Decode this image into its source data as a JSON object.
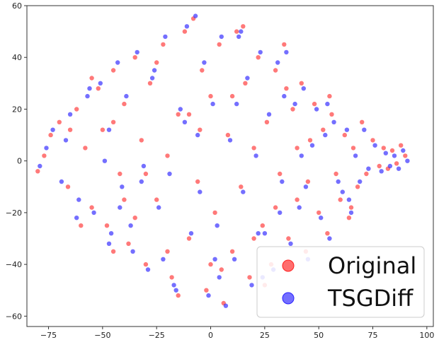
{
  "chart_data": {
    "type": "scatter",
    "title": "",
    "xlabel": "",
    "ylabel": "",
    "xlim": [
      -85,
      103
    ],
    "ylim": [
      -64,
      60
    ],
    "xticks": [
      -75,
      -50,
      -25,
      0,
      25,
      50,
      75,
      100
    ],
    "yticks": [
      -60,
      -40,
      -20,
      0,
      20,
      40,
      60
    ],
    "xtick_labels": [
      "−75",
      "−50",
      "−25",
      "0",
      "25",
      "50",
      "75",
      "100"
    ],
    "ytick_labels": [
      "−60",
      "−40",
      "−20",
      "0",
      "20",
      "40",
      "60"
    ],
    "grid": false,
    "legend": {
      "placement": "bottom-right",
      "entries": [
        {
          "label": "Original",
          "color": "#ff2020"
        },
        {
          "label": "TSGDiff",
          "color": "#2a22ff"
        }
      ]
    },
    "series": [
      {
        "name": "Original",
        "color": "#ff2020",
        "alpha": 0.6,
        "points": [
          [
            -80,
            -4
          ],
          [
            -77,
            2
          ],
          [
            -74,
            10
          ],
          [
            -70,
            15
          ],
          [
            -66,
            -10
          ],
          [
            -62,
            20
          ],
          [
            -58,
            5
          ],
          [
            -55,
            -18
          ],
          [
            -52,
            28
          ],
          [
            -50,
            12
          ],
          [
            -48,
            -25
          ],
          [
            -45,
            35
          ],
          [
            -42,
            -5
          ],
          [
            -40,
            22
          ],
          [
            -38,
            -32
          ],
          [
            -35,
            40
          ],
          [
            -32,
            8
          ],
          [
            -30,
            -40
          ],
          [
            -28,
            30
          ],
          [
            -25,
            -15
          ],
          [
            -22,
            45
          ],
          [
            -20,
            2
          ],
          [
            -18,
            -45
          ],
          [
            -15,
            18
          ],
          [
            -12,
            50
          ],
          [
            -10,
            -30
          ],
          [
            -8,
            55
          ],
          [
            -6,
            -8
          ],
          [
            -4,
            35
          ],
          [
            -2,
            -50
          ],
          [
            0,
            25
          ],
          [
            2,
            -20
          ],
          [
            4,
            45
          ],
          [
            6,
            -55
          ],
          [
            8,
            10
          ],
          [
            10,
            -35
          ],
          [
            12,
            50
          ],
          [
            14,
            -10
          ],
          [
            16,
            30
          ],
          [
            18,
            -45
          ],
          [
            20,
            5
          ],
          [
            22,
            40
          ],
          [
            24,
            -25
          ],
          [
            26,
            15
          ],
          [
            28,
            -40
          ],
          [
            30,
            35
          ],
          [
            32,
            -5
          ],
          [
            34,
            45
          ],
          [
            36,
            -30
          ],
          [
            38,
            20
          ],
          [
            40,
            -15
          ],
          [
            42,
            30
          ],
          [
            44,
            -35
          ],
          [
            46,
            8
          ],
          [
            48,
            22
          ],
          [
            50,
            -20
          ],
          [
            52,
            12
          ],
          [
            54,
            -28
          ],
          [
            56,
            18
          ],
          [
            58,
            -5
          ],
          [
            60,
            -15
          ],
          [
            62,
            10
          ],
          [
            64,
            -22
          ],
          [
            66,
            5
          ],
          [
            68,
            -10
          ],
          [
            70,
            15
          ],
          [
            72,
            -5
          ],
          [
            75,
            8
          ],
          [
            78,
            -2
          ],
          [
            80,
            5
          ],
          [
            82,
            -3
          ],
          [
            84,
            4
          ],
          [
            86,
            -1
          ],
          [
            88,
            6
          ],
          [
            90,
            2
          ],
          [
            -60,
            -25
          ],
          [
            -55,
            32
          ],
          [
            -45,
            -35
          ],
          [
            -35,
            -22
          ],
          [
            -25,
            38
          ],
          [
            -15,
            -52
          ],
          [
            -5,
            12
          ],
          [
            5,
            -42
          ],
          [
            15,
            52
          ],
          [
            25,
            -48
          ],
          [
            35,
            28
          ],
          [
            45,
            -8
          ],
          [
            55,
            25
          ],
          [
            65,
            -18
          ],
          [
            -65,
            12
          ],
          [
            -45,
            15
          ],
          [
            -30,
            -5
          ],
          [
            -10,
            18
          ],
          [
            10,
            25
          ],
          [
            30,
            -18
          ],
          [
            -20,
            -35
          ],
          [
            0,
            -40
          ],
          [
            20,
            -30
          ],
          [
            -40,
            -15
          ],
          [
            40,
            5
          ]
        ]
      },
      {
        "name": "TSGDiff",
        "color": "#2a22ff",
        "alpha": 0.65,
        "points": [
          [
            -79,
            -2
          ],
          [
            -76,
            5
          ],
          [
            -73,
            12
          ],
          [
            -69,
            -8
          ],
          [
            -65,
            18
          ],
          [
            -61,
            -15
          ],
          [
            -57,
            25
          ],
          [
            -54,
            -20
          ],
          [
            -51,
            30
          ],
          [
            -49,
            0
          ],
          [
            -46,
            -28
          ],
          [
            -43,
            38
          ],
          [
            -41,
            -10
          ],
          [
            -39,
            25
          ],
          [
            -36,
            -35
          ],
          [
            -34,
            42
          ],
          [
            -31,
            -2
          ],
          [
            -29,
            -42
          ],
          [
            -27,
            32
          ],
          [
            -24,
            -18
          ],
          [
            -21,
            48
          ],
          [
            -19,
            -5
          ],
          [
            -17,
            -48
          ],
          [
            -14,
            20
          ],
          [
            -11,
            52
          ],
          [
            -9,
            -28
          ],
          [
            -7,
            56
          ],
          [
            -5,
            -12
          ],
          [
            -3,
            38
          ],
          [
            -1,
            -52
          ],
          [
            1,
            22
          ],
          [
            3,
            -25
          ],
          [
            5,
            48
          ],
          [
            7,
            -56
          ],
          [
            9,
            8
          ],
          [
            11,
            -38
          ],
          [
            13,
            48
          ],
          [
            15,
            -12
          ],
          [
            17,
            32
          ],
          [
            19,
            -48
          ],
          [
            21,
            2
          ],
          [
            23,
            42
          ],
          [
            25,
            -28
          ],
          [
            27,
            18
          ],
          [
            29,
            -42
          ],
          [
            31,
            38
          ],
          [
            33,
            -8
          ],
          [
            35,
            42
          ],
          [
            37,
            -32
          ],
          [
            39,
            22
          ],
          [
            41,
            -18
          ],
          [
            43,
            28
          ],
          [
            45,
            -38
          ],
          [
            47,
            6
          ],
          [
            49,
            20
          ],
          [
            51,
            -22
          ],
          [
            53,
            10
          ],
          [
            55,
            -30
          ],
          [
            57,
            15
          ],
          [
            59,
            -8
          ],
          [
            61,
            -12
          ],
          [
            63,
            12
          ],
          [
            65,
            -20
          ],
          [
            67,
            2
          ],
          [
            69,
            -8
          ],
          [
            71,
            12
          ],
          [
            73,
            -3
          ],
          [
            76,
            6
          ],
          [
            79,
            -4
          ],
          [
            81,
            3
          ],
          [
            83,
            -2
          ],
          [
            85,
            2
          ],
          [
            87,
            -3
          ],
          [
            89,
            4
          ],
          [
            91,
            0
          ],
          [
            -62,
            -22
          ],
          [
            -56,
            28
          ],
          [
            -47,
            -32
          ],
          [
            -37,
            -25
          ],
          [
            -26,
            35
          ],
          [
            -16,
            -50
          ],
          [
            -6,
            10
          ],
          [
            4,
            -45
          ],
          [
            14,
            50
          ],
          [
            24,
            -45
          ],
          [
            34,
            25
          ],
          [
            44,
            -10
          ],
          [
            54,
            22
          ],
          [
            64,
            -15
          ],
          [
            -67,
            8
          ],
          [
            -47,
            12
          ],
          [
            -32,
            -8
          ],
          [
            -12,
            15
          ],
          [
            12,
            22
          ],
          [
            32,
            -20
          ],
          [
            -22,
            -38
          ],
          [
            2,
            -38
          ],
          [
            22,
            -28
          ],
          [
            -42,
            -18
          ],
          [
            42,
            2
          ]
        ]
      }
    ]
  }
}
